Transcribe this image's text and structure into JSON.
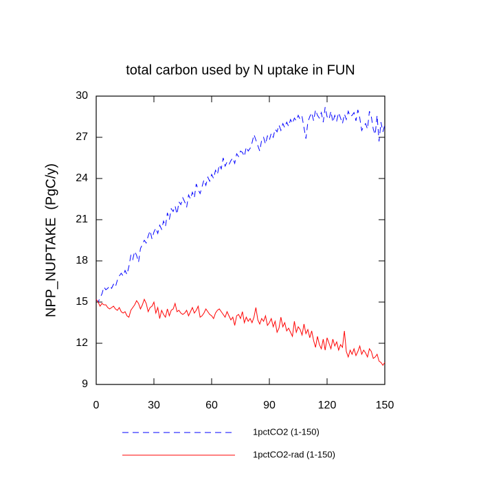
{
  "chart_data": {
    "type": "line",
    "title": "total carbon used by N uptake in FUN",
    "y_label": "NPP_NUPTAKE  (PgC/y)",
    "xlim": [
      0,
      150
    ],
    "xticks": [
      0,
      30,
      60,
      90,
      120,
      150
    ],
    "ylim": [
      9,
      30
    ],
    "yticks": [
      9,
      12,
      15,
      18,
      21,
      24,
      27,
      30
    ],
    "x": [
      0,
      1,
      2,
      3,
      4,
      5,
      6,
      7,
      8,
      9,
      10,
      11,
      12,
      13,
      14,
      15,
      16,
      17,
      18,
      19,
      20,
      21,
      22,
      23,
      24,
      25,
      26,
      27,
      28,
      29,
      30,
      31,
      32,
      33,
      34,
      35,
      36,
      37,
      38,
      39,
      40,
      41,
      42,
      43,
      44,
      45,
      46,
      47,
      48,
      49,
      50,
      51,
      52,
      53,
      54,
      55,
      56,
      57,
      58,
      59,
      60,
      61,
      62,
      63,
      64,
      65,
      66,
      67,
      68,
      69,
      70,
      71,
      72,
      73,
      74,
      75,
      76,
      77,
      78,
      79,
      80,
      81,
      82,
      83,
      84,
      85,
      86,
      87,
      88,
      89,
      90,
      91,
      92,
      93,
      94,
      95,
      96,
      97,
      98,
      99,
      100,
      101,
      102,
      103,
      104,
      105,
      106,
      107,
      108,
      109,
      110,
      111,
      112,
      113,
      114,
      115,
      116,
      117,
      118,
      119,
      120,
      121,
      122,
      123,
      124,
      125,
      126,
      127,
      128,
      129,
      130,
      131,
      132,
      133,
      134,
      135,
      136,
      137,
      138,
      139,
      140,
      141,
      142,
      143,
      144,
      145,
      146,
      147,
      148,
      149,
      150
    ],
    "series": [
      {
        "name": "1pctCO2 (1-150)",
        "color": "#0000ff",
        "dashed": true,
        "values": [
          15.2,
          15.0,
          15.3,
          15.6,
          16.1,
          15.9,
          16.0,
          16.2,
          16.0,
          16.3,
          16.1,
          16.6,
          16.9,
          17.1,
          16.9,
          17.3,
          17.0,
          17.6,
          18.4,
          18.1,
          18.7,
          18.4,
          17.9,
          18.9,
          19.2,
          19.5,
          19.3,
          19.8,
          20.2,
          19.6,
          20.1,
          20.4,
          20.0,
          20.6,
          20.3,
          20.9,
          20.5,
          21.5,
          21.0,
          21.8,
          21.6,
          22.0,
          21.4,
          22.3,
          22.1,
          22.6,
          22.3,
          21.9,
          22.8,
          22.5,
          23.0,
          22.6,
          23.6,
          23.2,
          22.9,
          23.4,
          23.9,
          23.5,
          24.1,
          23.8,
          24.3,
          24.0,
          24.6,
          24.3,
          25.0,
          24.7,
          25.5,
          24.9,
          25.2,
          25.0,
          25.3,
          25.5,
          25.1,
          25.8,
          25.6,
          26.0,
          25.9,
          25.6,
          26.3,
          26.0,
          26.2,
          26.6,
          27.2,
          26.8,
          26.4,
          26.0,
          26.8,
          27.0,
          26.5,
          27.1,
          26.8,
          27.3,
          27.0,
          27.6,
          27.4,
          27.9,
          27.5,
          28.0,
          27.7,
          28.1,
          27.8,
          28.3,
          28.0,
          28.4,
          28.2,
          28.6,
          28.3,
          28.5,
          27.7,
          26.9,
          28.1,
          28.5,
          28.8,
          28.2,
          29.0,
          28.6,
          28.4,
          28.8,
          28.1,
          29.2,
          28.5,
          28.3,
          28.9,
          28.1,
          28.6,
          28.2,
          28.8,
          28.4,
          28.0,
          28.7,
          28.3,
          28.9,
          28.5,
          28.6,
          28.8,
          28.2,
          29.0,
          28.4,
          27.5,
          27.8,
          28.0,
          27.6,
          28.9,
          28.5,
          27.6,
          27.2,
          28.6,
          26.7,
          28.1,
          27.4,
          27.9
        ]
      },
      {
        "name": "1pctCO2-rad (1-150)",
        "color": "#ff0000",
        "dashed": false,
        "values": [
          15.2,
          15.0,
          14.7,
          14.9,
          14.8,
          14.8,
          14.6,
          14.5,
          14.6,
          14.7,
          14.5,
          14.4,
          14.6,
          14.3,
          14.2,
          14.3,
          14.0,
          13.9,
          14.4,
          14.6,
          14.8,
          15.1,
          14.9,
          14.5,
          14.8,
          15.2,
          14.9,
          14.3,
          14.6,
          14.7,
          15.0,
          14.2,
          14.6,
          13.8,
          14.4,
          14.1,
          13.9,
          14.5,
          14.0,
          14.4,
          14.5,
          14.9,
          14.3,
          14.4,
          14.2,
          14.1,
          14.2,
          14.4,
          14.0,
          14.3,
          14.6,
          14.2,
          14.4,
          14.7,
          13.9,
          14.0,
          14.2,
          14.5,
          14.3,
          14.1,
          14.0,
          13.8,
          14.2,
          14.4,
          14.5,
          14.3,
          14.1,
          13.9,
          14.3,
          14.0,
          13.7,
          13.9,
          13.3,
          14.0,
          14.1,
          13.8,
          14.3,
          13.5,
          13.9,
          13.6,
          13.8,
          13.5,
          13.9,
          14.6,
          13.7,
          13.4,
          13.8,
          13.6,
          14.0,
          13.3,
          13.5,
          13.8,
          13.2,
          13.6,
          12.8,
          13.1,
          13.9,
          13.2,
          13.5,
          12.9,
          13.1,
          12.8,
          12.5,
          13.6,
          12.8,
          13.2,
          13.0,
          12.6,
          13.4,
          12.7,
          13.0,
          12.4,
          12.9,
          12.2,
          11.7,
          12.5,
          11.9,
          11.6,
          12.3,
          11.5,
          12.4,
          12.0,
          11.6,
          12.3,
          11.8,
          12.1,
          11.5,
          11.9,
          11.7,
          12.9,
          11.4,
          11.0,
          11.5,
          11.2,
          11.6,
          11.1,
          11.4,
          11.8,
          11.2,
          11.5,
          11.3,
          11.0,
          11.6,
          11.4,
          10.9,
          11.0,
          11.2,
          10.7,
          10.6,
          10.4,
          10.6
        ]
      }
    ]
  }
}
